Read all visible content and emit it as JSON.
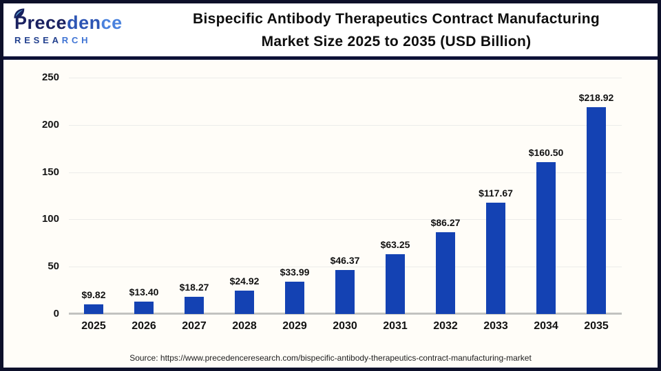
{
  "header": {
    "logo": {
      "part1": "Prece",
      "part2": "den",
      "part3": "ce",
      "sub1": "RESEA",
      "sub2": "RCH"
    },
    "title_line1": "Bispecific Antibody Therapeutics Contract Manufacturing",
    "title_line2": "Market Size 2025 to 2035 (USD Billion)"
  },
  "footer": {
    "source": "Source: https://www.precedenceresearch.com/bispecific-antibody-therapeutics-contract-manufacturing-market"
  },
  "colors": {
    "bar": "#1442b3",
    "divider": "#0d1137",
    "frame_border": "#0d102a",
    "chart_background": "#fffdf8",
    "gridline": "#ececea",
    "axis_line": "#c2c2c0"
  },
  "chart_data": {
    "type": "bar",
    "title": "Bispecific Antibody Therapeutics Contract Manufacturing Market Size 2025 to 2035 (USD Billion)",
    "unit": "USD Billion",
    "categories": [
      "2025",
      "2026",
      "2027",
      "2028",
      "2029",
      "2030",
      "2031",
      "2032",
      "2033",
      "2034",
      "2035"
    ],
    "values": [
      9.82,
      13.4,
      18.27,
      24.92,
      33.99,
      46.37,
      63.25,
      86.27,
      117.67,
      160.5,
      218.92
    ],
    "labels": [
      "$9.82",
      "$13.40",
      "$18.27",
      "$24.92",
      "$33.99",
      "$46.37",
      "$63.25",
      "$86.27",
      "$117.67",
      "$160.50",
      "$218.92"
    ],
    "y_ticks": [
      0,
      50,
      100,
      150,
      200,
      250
    ],
    "ylim": [
      0,
      250
    ],
    "grid": true,
    "legend": "none",
    "xlabel": "",
    "ylabel": ""
  }
}
